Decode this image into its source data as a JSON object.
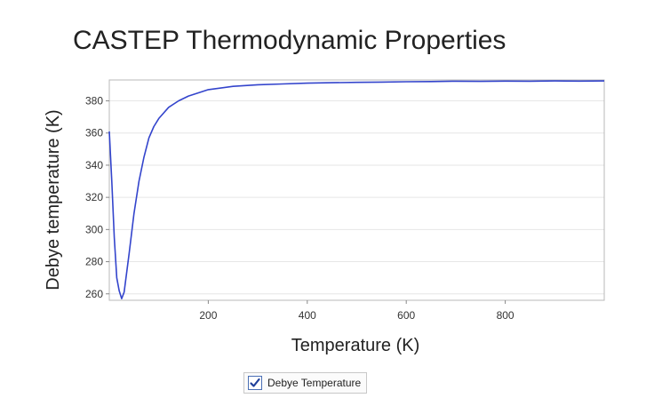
{
  "chart_data": {
    "type": "line",
    "title": "CASTEP Thermodynamic Properties",
    "xlabel": "Temperature (K)",
    "ylabel": "Debye temperature (K)",
    "xlim": [
      0,
      1000
    ],
    "ylim": [
      256,
      393
    ],
    "xticks": [
      200,
      400,
      600,
      800
    ],
    "yticks": [
      260,
      280,
      300,
      320,
      340,
      360,
      380
    ],
    "grid": "horizontal",
    "series": [
      {
        "name": "Debye Temperature",
        "color": "#3344cc",
        "x": [
          0,
          5,
          10,
          15,
          20,
          25,
          30,
          40,
          50,
          60,
          70,
          80,
          90,
          100,
          120,
          140,
          160,
          180,
          200,
          250,
          300,
          350,
          400,
          450,
          500,
          550,
          600,
          650,
          700,
          750,
          800,
          850,
          900,
          950,
          1000
        ],
        "y": [
          361,
          330,
          295,
          270,
          262,
          257,
          261,
          285,
          310,
          330,
          345,
          357,
          364,
          369,
          376,
          380,
          383,
          385,
          387,
          389,
          390,
          390.5,
          391,
          391.3,
          391.5,
          391.7,
          391.9,
          392,
          392.2,
          392.1,
          392.3,
          392.2,
          392.4,
          392.3,
          392.4
        ]
      }
    ],
    "legend": {
      "position": "bottom-center",
      "checked": true,
      "label": "Debye Temperature"
    }
  }
}
